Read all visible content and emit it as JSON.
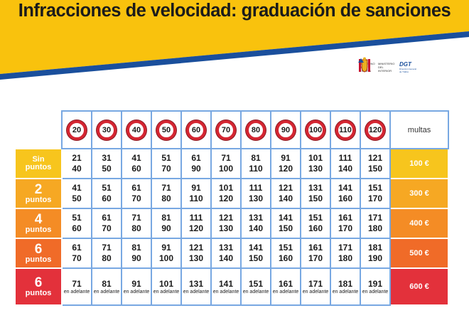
{
  "title": "Infracciones de velocidad: graduación de sanciones",
  "logos": {
    "gobierno": "GOBIERNO DE ESPAÑA",
    "ministerio": "MINISTERIO DEL INTERIOR",
    "dgt": "DGT",
    "dgt_sub": "Dirección General de Tráfico"
  },
  "colors": {
    "banner_yellow": "#f9c20d",
    "banner_blue": "#1a4f9c",
    "grid_blue": "#78a8e2",
    "sign_red": "#d42632"
  },
  "table": {
    "speed_limits": [
      "20",
      "30",
      "40",
      "50",
      "60",
      "70",
      "80",
      "90",
      "100",
      "110",
      "120"
    ],
    "fine_header": "multas",
    "rows": [
      {
        "label_big": "",
        "label_small_1": "Sin",
        "label_small_2": "puntos",
        "label_color": "#f7c51d",
        "fine_color": "#f7c51d",
        "fine": "100 €",
        "cells": [
          {
            "a": "21",
            "b": "40"
          },
          {
            "a": "31",
            "b": "50"
          },
          {
            "a": "41",
            "b": "60"
          },
          {
            "a": "51",
            "b": "70"
          },
          {
            "a": "61",
            "b": "90"
          },
          {
            "a": "71",
            "b": "100"
          },
          {
            "a": "81",
            "b": "110"
          },
          {
            "a": "91",
            "b": "120"
          },
          {
            "a": "101",
            "b": "130"
          },
          {
            "a": "111",
            "b": "140"
          },
          {
            "a": "121",
            "b": "150"
          }
        ]
      },
      {
        "label_big": "2",
        "label_small_1": "puntos",
        "label_small_2": "",
        "label_color": "#f6a823",
        "fine_color": "#f6a823",
        "fine": "300 €",
        "cells": [
          {
            "a": "41",
            "b": "50"
          },
          {
            "a": "51",
            "b": "60"
          },
          {
            "a": "61",
            "b": "70"
          },
          {
            "a": "71",
            "b": "80"
          },
          {
            "a": "91",
            "b": "110"
          },
          {
            "a": "101",
            "b": "120"
          },
          {
            "a": "111",
            "b": "130"
          },
          {
            "a": "121",
            "b": "140"
          },
          {
            "a": "131",
            "b": "150"
          },
          {
            "a": "141",
            "b": "160"
          },
          {
            "a": "151",
            "b": "170"
          }
        ]
      },
      {
        "label_big": "4",
        "label_small_1": "puntos",
        "label_small_2": "",
        "label_color": "#f48c25",
        "fine_color": "#f48c25",
        "fine": "400 €",
        "cells": [
          {
            "a": "51",
            "b": "60"
          },
          {
            "a": "61",
            "b": "70"
          },
          {
            "a": "71",
            "b": "80"
          },
          {
            "a": "81",
            "b": "90"
          },
          {
            "a": "111",
            "b": "120"
          },
          {
            "a": "121",
            "b": "130"
          },
          {
            "a": "131",
            "b": "140"
          },
          {
            "a": "141",
            "b": "150"
          },
          {
            "a": "151",
            "b": "160"
          },
          {
            "a": "161",
            "b": "170"
          },
          {
            "a": "171",
            "b": "180"
          }
        ]
      },
      {
        "label_big": "6",
        "label_small_1": "puntos",
        "label_small_2": "",
        "label_color": "#f06b28",
        "fine_color": "#f06b28",
        "fine": "500 €",
        "cells": [
          {
            "a": "61",
            "b": "70"
          },
          {
            "a": "71",
            "b": "80"
          },
          {
            "a": "81",
            "b": "90"
          },
          {
            "a": "91",
            "b": "100"
          },
          {
            "a": "121",
            "b": "130"
          },
          {
            "a": "131",
            "b": "140"
          },
          {
            "a": "141",
            "b": "150"
          },
          {
            "a": "151",
            "b": "160"
          },
          {
            "a": "161",
            "b": "170"
          },
          {
            "a": "171",
            "b": "180"
          },
          {
            "a": "181",
            "b": "190"
          }
        ]
      },
      {
        "label_big": "6",
        "label_small_1": "puntos",
        "label_small_2": "",
        "label_color": "#e3313b",
        "fine_color": "#e3313b",
        "fine": "600 €",
        "cells": [
          {
            "a": "71",
            "b": "en adelante"
          },
          {
            "a": "81",
            "b": "en adelante"
          },
          {
            "a": "91",
            "b": "en adelante"
          },
          {
            "a": "101",
            "b": "en adelante"
          },
          {
            "a": "131",
            "b": "en adelante"
          },
          {
            "a": "141",
            "b": "en adelante"
          },
          {
            "a": "151",
            "b": "en adelante"
          },
          {
            "a": "161",
            "b": "en adelante"
          },
          {
            "a": "171",
            "b": "en adelante"
          },
          {
            "a": "181",
            "b": "en adelante"
          },
          {
            "a": "191",
            "b": "en adelante"
          }
        ]
      }
    ]
  }
}
